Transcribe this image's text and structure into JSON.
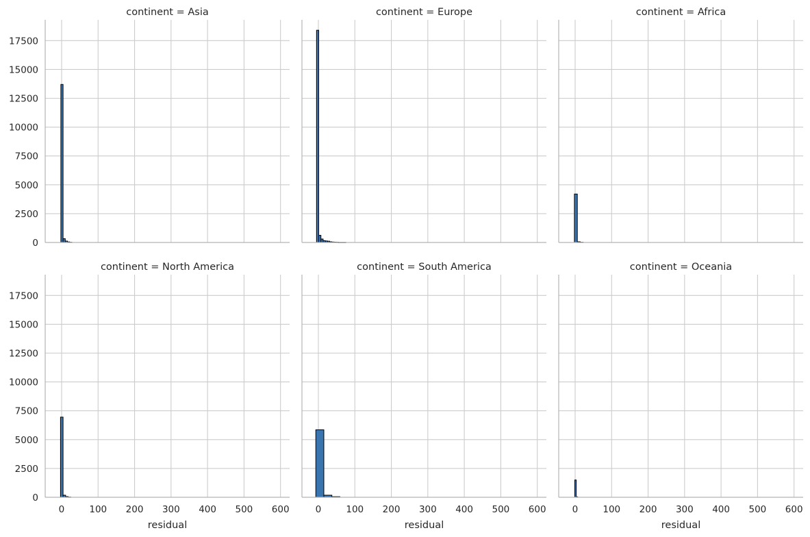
{
  "chart_data": {
    "type": "bar",
    "layout": "facet-grid",
    "shared_axes": true,
    "xlabel": "residual",
    "ylabel": "",
    "xlim": [
      -45,
      625
    ],
    "ylim": [
      0,
      19300
    ],
    "x_ticks": [
      0,
      100,
      200,
      300,
      400,
      500,
      600
    ],
    "y_ticks": [
      0,
      2500,
      5000,
      7500,
      10000,
      12500,
      15000,
      17500
    ],
    "grid": true,
    "bar_color": "#3b75af",
    "bar_edge_color": "#000000",
    "facets": [
      {
        "title": "continent = Asia",
        "bins": [
          {
            "x0": -2,
            "x1": 4,
            "count": 13700
          },
          {
            "x0": 4,
            "x1": 10,
            "count": 330
          },
          {
            "x0": 10,
            "x1": 16,
            "count": 120
          },
          {
            "x0": 16,
            "x1": 22,
            "count": 50
          },
          {
            "x0": 22,
            "x1": 28,
            "count": 20
          }
        ]
      },
      {
        "title": "continent = Europe",
        "bins": [
          {
            "x0": -5,
            "x1": 1,
            "count": 18400
          },
          {
            "x0": 1,
            "x1": 7,
            "count": 620
          },
          {
            "x0": 7,
            "x1": 13,
            "count": 300
          },
          {
            "x0": 13,
            "x1": 19,
            "count": 160
          },
          {
            "x0": 19,
            "x1": 25,
            "count": 130
          },
          {
            "x0": 25,
            "x1": 31,
            "count": 110
          },
          {
            "x0": 31,
            "x1": 37,
            "count": 60
          },
          {
            "x0": 37,
            "x1": 43,
            "count": 40
          },
          {
            "x0": 43,
            "x1": 49,
            "count": 30
          },
          {
            "x0": 49,
            "x1": 55,
            "count": 20
          },
          {
            "x0": 55,
            "x1": 75,
            "count": 10
          }
        ]
      },
      {
        "title": "continent = Africa",
        "bins": [
          {
            "x0": -2,
            "x1": 6,
            "count": 4200
          },
          {
            "x0": 6,
            "x1": 14,
            "count": 60
          },
          {
            "x0": 14,
            "x1": 22,
            "count": 20
          }
        ]
      },
      {
        "title": "continent = North America",
        "bins": [
          {
            "x0": -3,
            "x1": 4,
            "count": 6950
          },
          {
            "x0": 4,
            "x1": 11,
            "count": 180
          },
          {
            "x0": 11,
            "x1": 18,
            "count": 60
          },
          {
            "x0": 18,
            "x1": 25,
            "count": 20
          }
        ]
      },
      {
        "title": "continent = South America",
        "bins": [
          {
            "x0": -7,
            "x1": 15,
            "count": 5850
          },
          {
            "x0": 15,
            "x1": 37,
            "count": 180
          },
          {
            "x0": 37,
            "x1": 59,
            "count": 50
          }
        ]
      },
      {
        "title": "continent = Oceania",
        "bins": [
          {
            "x0": -1,
            "x1": 3,
            "count": 1500
          },
          {
            "x0": 3,
            "x1": 7,
            "count": 40
          }
        ]
      }
    ]
  }
}
